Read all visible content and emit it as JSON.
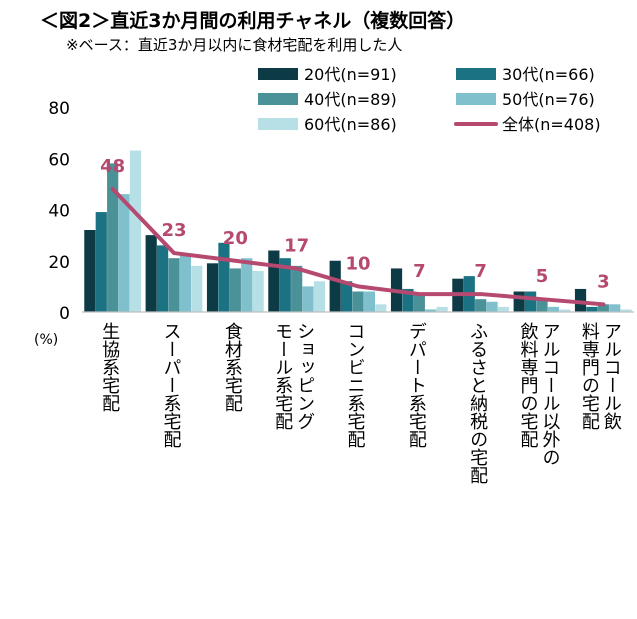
{
  "title": "＜図2＞直近3か月間の利用チャネル（複数回答）",
  "subtitle": "※ベース：直近3か月以内に食材宅配を利用した人",
  "chart_data": {
    "type": "bar",
    "ylabel": "(%)",
    "ylim": [
      0,
      80
    ],
    "yticks": [
      0,
      20,
      40,
      60,
      80
    ],
    "grid": false,
    "legend_position": "top",
    "categories": [
      "生協系宅配",
      "スーパー系宅配",
      "食材系宅配",
      "ショッピングモール系宅配",
      "コンビニ系宅配",
      "デパート系宅配",
      "ふるさと納税の宅配",
      "アルコール以外の飲料専門の宅配",
      "アルコール飲料専門の宅配"
    ],
    "series": [
      {
        "name": "20代(n=91)",
        "color": "#0d3b45",
        "values": [
          32,
          30,
          19,
          24,
          20,
          17,
          13,
          8,
          9
        ]
      },
      {
        "name": "30代(n=66)",
        "color": "#1a7282",
        "values": [
          39,
          26,
          27,
          21,
          12,
          9,
          14,
          8,
          2
        ]
      },
      {
        "name": "40代(n=89)",
        "color": "#4a9198",
        "values": [
          58,
          21,
          17,
          18,
          8,
          7,
          5,
          5,
          3
        ]
      },
      {
        "name": "50代(n=76)",
        "color": "#7fc0cc",
        "values": [
          46,
          22,
          21,
          10,
          8,
          1,
          4,
          2,
          3
        ]
      },
      {
        "name": "60代(n=86)",
        "color": "#b7e0e6",
        "values": [
          63,
          18,
          16,
          12,
          3,
          2,
          2,
          1,
          1
        ]
      }
    ],
    "line_series": {
      "name": "全体(n=408)",
      "color": "#b5496f",
      "values": [
        48,
        23,
        20,
        17,
        10,
        7,
        7,
        5,
        3
      ]
    }
  }
}
